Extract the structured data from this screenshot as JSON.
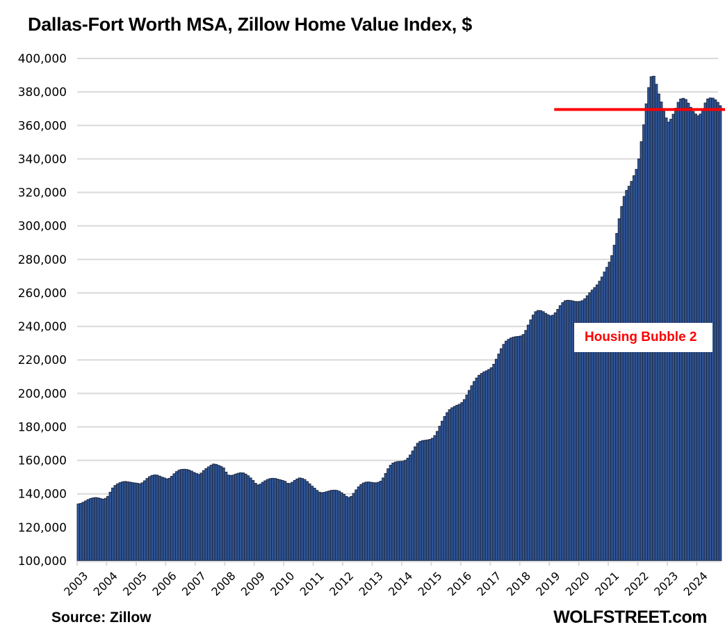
{
  "chart_data": {
    "type": "bar",
    "title": "Dallas-Fort Worth MSA, Zillow Home Value Index, $",
    "xlabel": "",
    "ylabel": "",
    "ylim": [
      100000,
      400000
    ],
    "yticks": [
      "100,000",
      "120,000",
      "140,000",
      "160,000",
      "180,000",
      "200,000",
      "220,000",
      "240,000",
      "260,000",
      "280,000",
      "300,000",
      "320,000",
      "340,000",
      "360,000",
      "380,000",
      "400,000"
    ],
    "xticks": [
      "2003",
      "2004",
      "2005",
      "2006",
      "2007",
      "2008",
      "2009",
      "2010",
      "2011",
      "2012",
      "2013",
      "2014",
      "2015",
      "2016",
      "2017",
      "2018",
      "2019",
      "2020",
      "2021",
      "2022",
      "2023",
      "2024"
    ],
    "frequency": "monthly",
    "start": "2003-01",
    "grid": true,
    "legend": "none",
    "reference_line": {
      "value": 369500,
      "color": "#ff0000",
      "start": "2019-03"
    },
    "annotation": "Housing Bubble 2",
    "source": "Source: Zillow",
    "brand": "WOLFSTREET.com",
    "yearly_values": {
      "2003": [
        134000,
        134300,
        135000,
        135800,
        136600,
        137200,
        137600,
        137800,
        137600,
        137200,
        136800,
        137300
      ],
      "2004": [
        138500,
        141000,
        143500,
        145000,
        146000,
        146700,
        147200,
        147400,
        147200,
        147000,
        146700,
        146500
      ],
      "2005": [
        146300,
        146000,
        146600,
        147800,
        149200,
        150300,
        151000,
        151300,
        151200,
        150600,
        150000,
        149500
      ],
      "2006": [
        148900,
        149300,
        150500,
        152000,
        153300,
        154200,
        154600,
        154700,
        154600,
        154200,
        153600,
        152800
      ],
      "2007": [
        152200,
        151600,
        152400,
        153900,
        155100,
        156100,
        157100,
        157800,
        157600,
        157000,
        156400,
        155500
      ],
      "2008": [
        153000,
        151200,
        151000,
        151200,
        151800,
        152300,
        152600,
        152500,
        151800,
        150800,
        149500,
        148000
      ],
      "2009": [
        146300,
        145300,
        145800,
        146900,
        147800,
        148600,
        149100,
        149300,
        149200,
        148800,
        148400,
        148000
      ],
      "2010": [
        147500,
        146300,
        146200,
        146900,
        148000,
        148900,
        149500,
        149200,
        148600,
        147400,
        146000,
        144600
      ],
      "2011": [
        143400,
        142100,
        141000,
        140700,
        140900,
        141300,
        141700,
        142100,
        142200,
        142100,
        141600,
        140700
      ],
      "2012": [
        139700,
        138500,
        137800,
        138500,
        140300,
        142400,
        144200,
        145600,
        146500,
        147000,
        147100,
        146900
      ],
      "2013": [
        146700,
        146600,
        146900,
        147600,
        149500,
        152200,
        155000,
        157100,
        158400,
        159000,
        159300,
        159400
      ],
      "2014": [
        159500,
        160000,
        161300,
        163200,
        165600,
        168100,
        170200,
        171300,
        171800,
        172000,
        172200,
        172500
      ],
      "2015": [
        173200,
        174800,
        177300,
        180400,
        183400,
        186200,
        188500,
        190300,
        191400,
        192200,
        192900,
        193500
      ],
      "2016": [
        194500,
        196300,
        199000,
        201800,
        204600,
        207100,
        209200,
        210800,
        211900,
        212800,
        213500,
        214300
      ],
      "2017": [
        215300,
        217400,
        220400,
        223500,
        226700,
        229300,
        231200,
        232300,
        233100,
        233600,
        233900,
        234000
      ],
      "2018": [
        234300,
        235200,
        237600,
        240800,
        243900,
        246800,
        248800,
        249500,
        249400,
        248800,
        247800,
        246900
      ],
      "2019": [
        246300,
        246700,
        248100,
        250200,
        252400,
        254200,
        255300,
        255600,
        255500,
        255200,
        254900,
        254800
      ],
      "2020": [
        254900,
        255400,
        256500,
        258300,
        260100,
        261700,
        263200,
        264800,
        267000,
        269500,
        272500,
        275300
      ],
      "2021": [
        278400,
        282300,
        288500,
        295500,
        304300,
        311600,
        317600,
        321200,
        323700,
        326600,
        330000,
        333800
      ],
      "2022": [
        340000,
        350300,
        360400,
        372900,
        382600,
        389100,
        389400,
        384600,
        378800,
        374000,
        368400,
        364500
      ],
      "2023": [
        362000,
        363700,
        366700,
        370300,
        373800,
        375800,
        376200,
        375500,
        373300,
        370800,
        368300,
        366800
      ],
      "2024": [
        365700,
        366800,
        369800,
        373400,
        375800,
        376400,
        376300,
        375300,
        373800,
        371800
      ]
    }
  }
}
